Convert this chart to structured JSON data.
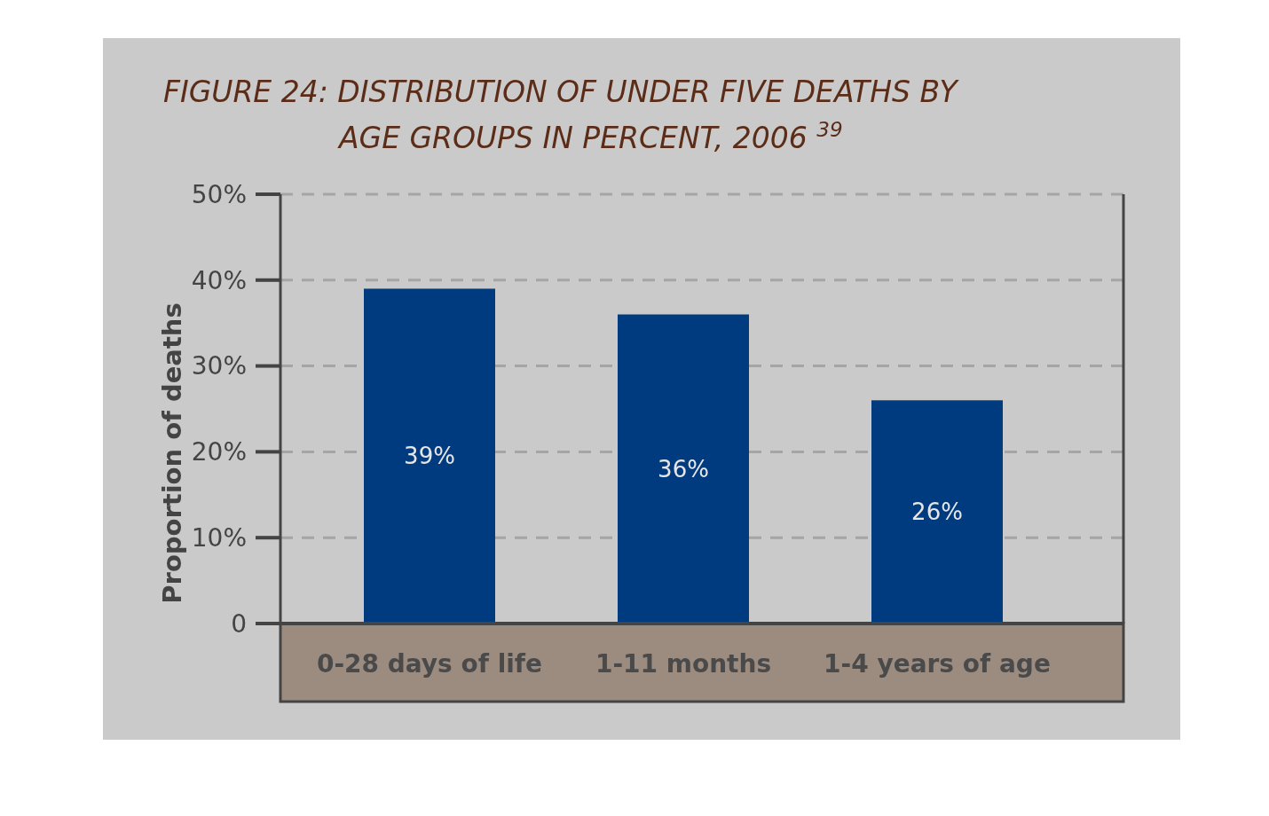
{
  "chart_data": {
    "type": "bar",
    "title": "FIGURE 24: DISTRIBUTION OF UNDER FIVE DEATHS BY",
    "subtitle": "AGE GROUPS IN PERCENT, 2006 $^{39}$",
    "ylabel": "Proportion of deaths",
    "categories": [
      "0-28 days of life",
      "1-11 months",
      "1-4 years of age"
    ],
    "values": [
      39,
      36,
      26
    ],
    "value_labels": [
      "39%",
      "36%",
      "26%"
    ],
    "color": "#003b7f",
    "ylim": [
      0,
      50
    ],
    "yticks": [
      0,
      {
        "value": 10,
        "label": "10%"
      },
      {
        "value": 20,
        "label": "20%"
      },
      {
        "value": 30,
        "label": "30%"
      },
      {
        "value": 40,
        "label": "40%"
      },
      {
        "value": 50,
        "label": "50%"
      }
    ],
    "grid": "y"
  }
}
